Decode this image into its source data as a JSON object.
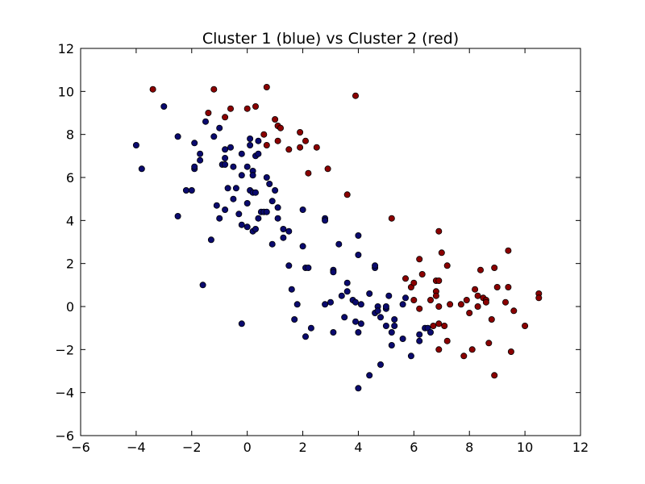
{
  "chart_data": {
    "type": "scatter",
    "title": "Cluster 1 (blue) vs Cluster 2 (red)",
    "xlabel": "",
    "ylabel": "",
    "xlim": [
      -6,
      12
    ],
    "ylim": [
      -6,
      12
    ],
    "xticks": [
      -6,
      -4,
      -2,
      0,
      2,
      4,
      6,
      8,
      10,
      12
    ],
    "yticks": [
      -6,
      -4,
      -2,
      0,
      2,
      4,
      6,
      8,
      10,
      12
    ],
    "grid": false,
    "legend": "none",
    "series": [
      {
        "color": "#0a0a6e",
        "points": [
          [
            -4.0,
            7.5
          ],
          [
            -3.8,
            6.4
          ],
          [
            -3.0,
            9.3
          ],
          [
            -2.5,
            7.9
          ],
          [
            -2.5,
            4.2
          ],
          [
            -2.2,
            5.4
          ],
          [
            -2.0,
            5.4
          ],
          [
            -1.9,
            7.6
          ],
          [
            -1.9,
            6.4
          ],
          [
            -1.9,
            6.5
          ],
          [
            -1.7,
            7.1
          ],
          [
            -1.7,
            6.8
          ],
          [
            -1.6,
            1.0
          ],
          [
            -1.5,
            8.6
          ],
          [
            -1.3,
            3.1
          ],
          [
            -1.2,
            7.9
          ],
          [
            -1.1,
            4.7
          ],
          [
            -1.0,
            4.1
          ],
          [
            -1.0,
            8.3
          ],
          [
            -0.9,
            6.6
          ],
          [
            -0.8,
            7.3
          ],
          [
            -0.8,
            6.9
          ],
          [
            -0.8,
            6.6
          ],
          [
            -0.8,
            4.5
          ],
          [
            -0.7,
            5.5
          ],
          [
            -0.6,
            7.4
          ],
          [
            -0.5,
            6.5
          ],
          [
            -0.5,
            5.0
          ],
          [
            -0.4,
            5.5
          ],
          [
            -0.3,
            4.3
          ],
          [
            -0.2,
            6.1
          ],
          [
            -0.2,
            7.1
          ],
          [
            -0.2,
            3.8
          ],
          [
            -0.2,
            -0.8
          ],
          [
            0.0,
            6.5
          ],
          [
            0.0,
            4.8
          ],
          [
            0.0,
            3.7
          ],
          [
            0.1,
            5.4
          ],
          [
            0.1,
            7.8
          ],
          [
            0.1,
            7.5
          ],
          [
            0.2,
            6.3
          ],
          [
            0.2,
            6.1
          ],
          [
            0.2,
            5.3
          ],
          [
            0.2,
            3.5
          ],
          [
            0.3,
            7.0
          ],
          [
            0.3,
            3.6
          ],
          [
            0.3,
            5.3
          ],
          [
            0.4,
            4.1
          ],
          [
            0.4,
            7.1
          ],
          [
            0.4,
            7.7
          ],
          [
            0.5,
            4.4
          ],
          [
            0.6,
            4.4
          ],
          [
            0.7,
            4.4
          ],
          [
            0.7,
            6.0
          ],
          [
            0.8,
            5.7
          ],
          [
            0.9,
            2.9
          ],
          [
            0.9,
            4.9
          ],
          [
            1.0,
            5.4
          ],
          [
            1.1,
            4.6
          ],
          [
            1.1,
            4.1
          ],
          [
            1.3,
            3.2
          ],
          [
            1.3,
            3.6
          ],
          [
            1.5,
            3.5
          ],
          [
            1.5,
            1.9
          ],
          [
            1.6,
            0.8
          ],
          [
            1.7,
            -0.6
          ],
          [
            1.8,
            0.1
          ],
          [
            2.0,
            4.5
          ],
          [
            2.0,
            2.8
          ],
          [
            2.1,
            1.8
          ],
          [
            2.1,
            -1.4
          ],
          [
            2.2,
            1.8
          ],
          [
            2.3,
            -1.0
          ],
          [
            2.8,
            4.1
          ],
          [
            2.8,
            4.0
          ],
          [
            2.8,
            0.1
          ],
          [
            3.0,
            0.2
          ],
          [
            3.1,
            1.7
          ],
          [
            3.1,
            1.6
          ],
          [
            3.1,
            -1.2
          ],
          [
            3.3,
            2.9
          ],
          [
            3.4,
            0.5
          ],
          [
            3.5,
            -0.5
          ],
          [
            3.6,
            0.7
          ],
          [
            3.6,
            1.1
          ],
          [
            3.8,
            0.3
          ],
          [
            3.9,
            -0.7
          ],
          [
            3.9,
            0.2
          ],
          [
            4.0,
            -1.2
          ],
          [
            4.0,
            3.3
          ],
          [
            4.0,
            2.4
          ],
          [
            4.0,
            -3.8
          ],
          [
            4.1,
            -0.8
          ],
          [
            4.1,
            0.1
          ],
          [
            4.4,
            0.6
          ],
          [
            4.4,
            -3.2
          ],
          [
            4.6,
            -0.3
          ],
          [
            4.6,
            1.8
          ],
          [
            4.6,
            1.9
          ],
          [
            4.7,
            0.0
          ],
          [
            4.7,
            -0.2
          ],
          [
            4.8,
            -2.7
          ],
          [
            4.8,
            -0.5
          ],
          [
            5.0,
            -0.1
          ],
          [
            5.0,
            -0.9
          ],
          [
            5.0,
            0.0
          ],
          [
            5.1,
            0.5
          ],
          [
            5.2,
            -1.2
          ],
          [
            5.2,
            -1.8
          ],
          [
            5.3,
            -0.6
          ],
          [
            5.3,
            -0.9
          ],
          [
            5.6,
            -1.5
          ],
          [
            5.6,
            0.1
          ],
          [
            5.7,
            0.4
          ],
          [
            5.9,
            -2.3
          ],
          [
            6.2,
            -1.3
          ],
          [
            6.2,
            -1.6
          ],
          [
            6.4,
            -1.0
          ],
          [
            6.5,
            -1.0
          ],
          [
            6.6,
            -1.2
          ]
        ]
      },
      {
        "color": "#8b0000",
        "points": [
          [
            -3.4,
            10.1
          ],
          [
            -1.4,
            9.0
          ],
          [
            -1.2,
            10.1
          ],
          [
            -0.8,
            8.8
          ],
          [
            -0.6,
            9.2
          ],
          [
            0.0,
            9.2
          ],
          [
            0.3,
            9.3
          ],
          [
            0.6,
            8.0
          ],
          [
            0.7,
            10.2
          ],
          [
            0.7,
            7.5
          ],
          [
            1.0,
            8.7
          ],
          [
            1.1,
            8.4
          ],
          [
            1.1,
            7.7
          ],
          [
            1.2,
            8.3
          ],
          [
            1.5,
            7.3
          ],
          [
            1.9,
            7.4
          ],
          [
            1.9,
            8.1
          ],
          [
            2.1,
            7.7
          ],
          [
            2.2,
            6.2
          ],
          [
            2.5,
            7.4
          ],
          [
            2.9,
            6.4
          ],
          [
            3.6,
            5.2
          ],
          [
            3.9,
            9.8
          ],
          [
            5.2,
            4.1
          ],
          [
            5.7,
            1.3
          ],
          [
            5.9,
            0.9
          ],
          [
            6.0,
            1.1
          ],
          [
            6.0,
            0.3
          ],
          [
            6.2,
            -0.1
          ],
          [
            6.2,
            2.2
          ],
          [
            6.3,
            1.5
          ],
          [
            6.6,
            0.3
          ],
          [
            6.7,
            -0.9
          ],
          [
            6.8,
            1.2
          ],
          [
            6.8,
            0.7
          ],
          [
            6.8,
            0.5
          ],
          [
            6.9,
            3.5
          ],
          [
            6.9,
            1.2
          ],
          [
            6.9,
            -0.8
          ],
          [
            6.9,
            -2.0
          ],
          [
            6.9,
            0.0
          ],
          [
            7.0,
            2.5
          ],
          [
            7.1,
            -0.9
          ],
          [
            7.2,
            1.9
          ],
          [
            7.2,
            -1.6
          ],
          [
            7.3,
            0.1
          ],
          [
            7.7,
            0.1
          ],
          [
            7.8,
            -2.3
          ],
          [
            7.9,
            0.3
          ],
          [
            8.0,
            -0.3
          ],
          [
            8.1,
            -2.0
          ],
          [
            8.2,
            0.8
          ],
          [
            8.3,
            0.0
          ],
          [
            8.3,
            0.5
          ],
          [
            8.4,
            1.7
          ],
          [
            8.5,
            0.4
          ],
          [
            8.6,
            0.3
          ],
          [
            8.6,
            0.2
          ],
          [
            8.7,
            -1.7
          ],
          [
            8.8,
            -0.6
          ],
          [
            8.9,
            -3.2
          ],
          [
            8.9,
            1.8
          ],
          [
            9.0,
            0.9
          ],
          [
            9.3,
            0.2
          ],
          [
            9.4,
            2.6
          ],
          [
            9.4,
            0.9
          ],
          [
            9.5,
            -2.1
          ],
          [
            9.6,
            -0.2
          ],
          [
            10.0,
            -0.9
          ],
          [
            10.5,
            0.6
          ],
          [
            10.5,
            0.4
          ]
        ]
      }
    ]
  }
}
